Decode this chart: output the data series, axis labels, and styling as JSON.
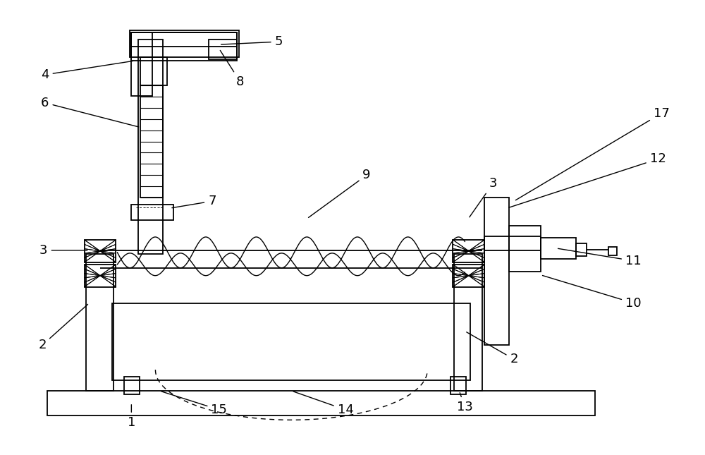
{
  "bg_color": "#ffffff",
  "line_color": "#000000",
  "label_color": "#000000",
  "fig_width": 10.0,
  "fig_height": 6.45,
  "lw": 1.3,
  "fs": 13
}
